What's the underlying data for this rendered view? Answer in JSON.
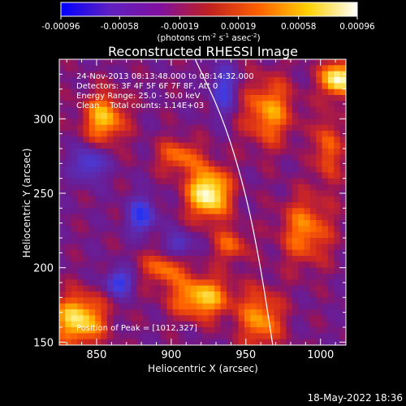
{
  "chart_data": {
    "type": "heatmap",
    "title": "Reconstructed RHESSI Image",
    "xlabel": "Heliocentric X (arcsec)",
    "ylabel": "Heliocentric Y (arcsec)",
    "xlim": [
      825,
      1017
    ],
    "ylim": [
      148,
      340
    ],
    "x_ticks": [
      850,
      900,
      950,
      1000
    ],
    "y_ticks": [
      150,
      200,
      250,
      300
    ],
    "x_tick_labels": [
      "850",
      "900",
      "950",
      "1000"
    ],
    "y_tick_labels": [
      "150",
      "200",
      "250",
      "300"
    ],
    "colorbar": {
      "range": [
        -0.00096,
        0.00096
      ],
      "ticks": [
        -0.00096,
        -0.00058,
        -0.00019,
        0.00019,
        0.00058,
        0.00096
      ],
      "tick_labels": [
        "-0.00096",
        "-0.00058",
        "-0.00019",
        "0.00019",
        "0.00058",
        "0.00096"
      ],
      "unit_label": "(photons cm",
      "unit_sup1": "-2",
      "unit_mid1": " s",
      "unit_sup2": "-1",
      "unit_mid2": " asec",
      "unit_sup3": "-2",
      "unit_end": ")",
      "colors": [
        "#0000ff",
        "#6020c0",
        "#8010a0",
        "#c02020",
        "#ff6000",
        "#ffd000",
        "#ffffff"
      ]
    },
    "annotations": [
      "24-Nov-2013 08:13:48.000 to 08:14:32.000",
      "Detectors: 3F 4F 5F 6F 7F 8F, Att 0",
      "Energy Range: 25.0 - 50.0 keV",
      "Clean    Total counts: 1.14E+03"
    ],
    "peak_label": "Position of Peak = [1012,327]",
    "peak": [
      1012,
      327
    ],
    "limb_arc_points": [
      [
        916,
        340
      ],
      [
        935,
        300
      ],
      [
        950,
        250
      ],
      [
        960,
        200
      ],
      [
        968,
        148
      ]
    ],
    "hot_spots": [
      {
        "x": 925,
        "y": 250,
        "amp": 1.0,
        "sx": 10,
        "sy": 12
      },
      {
        "x": 1012,
        "y": 327,
        "amp": 1.0,
        "sx": 8,
        "sy": 8
      },
      {
        "x": 838,
        "y": 165,
        "amp": 0.85,
        "sx": 12,
        "sy": 12
      },
      {
        "x": 855,
        "y": 300,
        "amp": 0.7,
        "sx": 10,
        "sy": 12
      },
      {
        "x": 920,
        "y": 180,
        "amp": 0.75,
        "sx": 14,
        "sy": 10
      },
      {
        "x": 965,
        "y": 305,
        "amp": 0.6,
        "sx": 12,
        "sy": 16
      },
      {
        "x": 990,
        "y": 225,
        "amp": 0.55,
        "sx": 12,
        "sy": 16
      },
      {
        "x": 960,
        "y": 165,
        "amp": 0.6,
        "sx": 10,
        "sy": 14
      },
      {
        "x": 895,
        "y": 200,
        "amp": 0.5,
        "sx": 10,
        "sy": 8
      },
      {
        "x": 905,
        "y": 275,
        "amp": 0.5,
        "sx": 10,
        "sy": 8
      },
      {
        "x": 1005,
        "y": 280,
        "amp": 0.5,
        "sx": 6,
        "sy": 16
      },
      {
        "x": 940,
        "y": 215,
        "amp": 0.45,
        "sx": 8,
        "sy": 8
      }
    ],
    "cold_spots": [
      {
        "x": 880,
        "y": 235,
        "amp": 0.8,
        "sx": 6,
        "sy": 8
      },
      {
        "x": 865,
        "y": 190,
        "amp": 0.75,
        "sx": 6,
        "sy": 6
      },
      {
        "x": 845,
        "y": 270,
        "amp": 0.6,
        "sx": 8,
        "sy": 8
      },
      {
        "x": 905,
        "y": 215,
        "amp": 0.55,
        "sx": 6,
        "sy": 6
      },
      {
        "x": 935,
        "y": 320,
        "amp": 0.6,
        "sx": 6,
        "sy": 12
      }
    ],
    "footer": "18-May-2022 18:36"
  }
}
